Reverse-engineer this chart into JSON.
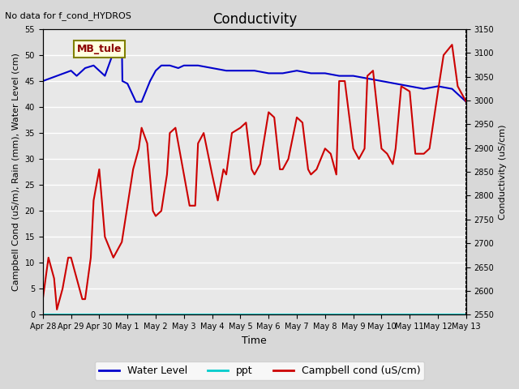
{
  "title": "Conductivity",
  "top_left_text": "No data for f_cond_HYDROS",
  "annotation_box": "MB_tule",
  "xlabel": "Time",
  "ylabel_left": "Campbell Cond (uS/m), Rain (mm), Water Level (cm)",
  "ylabel_right": "Conductivity (uS/cm)",
  "ylim_left": [
    0,
    55
  ],
  "ylim_right": [
    2550,
    3150
  ],
  "yticks_left": [
    0,
    5,
    10,
    15,
    20,
    25,
    30,
    35,
    40,
    45,
    50,
    55
  ],
  "yticks_right": [
    2550,
    2600,
    2650,
    2700,
    2750,
    2800,
    2850,
    2900,
    2950,
    3000,
    3050,
    3100,
    3150
  ],
  "xtick_labels": [
    "Apr 28",
    "Apr 29",
    "Apr 30",
    "May 1",
    "May 2",
    "May 3",
    "May 4",
    "May 5",
    "May 6",
    "May 7",
    "May 8",
    "May 9",
    "May 10",
    "May 11",
    "May 12",
    "May 13"
  ],
  "bg_color": "#e8e8e8",
  "plot_bg_color": "#f0f0f0",
  "water_level_color": "#0000cc",
  "ppt_color": "#00cccc",
  "campbell_color": "#cc0000",
  "legend_entries": [
    "Water Level",
    "ppt",
    "Campbell cond (uS/cm)"
  ],
  "water_level_data_x": [
    0,
    0.5,
    1.0,
    1.2,
    1.5,
    1.8,
    2.0,
    2.2,
    2.5,
    2.7,
    2.8,
    2.82,
    3.0,
    3.3,
    3.5,
    3.8,
    4.0,
    4.2,
    4.5,
    4.8,
    5.0,
    5.5,
    6.0,
    6.5,
    7.0,
    7.5,
    8.0,
    8.5,
    9.0,
    9.5,
    10.0,
    10.5,
    11.0,
    11.5,
    12.0,
    12.5,
    13.0,
    13.5,
    14.0,
    14.5,
    15.0
  ],
  "water_level_data_y": [
    45,
    46,
    47,
    46,
    47.5,
    48,
    47,
    46,
    50.5,
    52,
    52.5,
    45,
    44.5,
    41,
    41,
    45,
    47,
    48,
    48,
    47.5,
    48,
    48,
    47.5,
    47,
    47,
    47,
    46.5,
    46.5,
    47,
    46.5,
    46.5,
    46,
    46,
    45.5,
    45,
    44.5,
    44,
    43.5,
    44,
    43.5,
    41
  ],
  "campbell_data_x": [
    0,
    0.2,
    0.4,
    0.5,
    0.7,
    0.9,
    1.0,
    1.2,
    1.4,
    1.5,
    1.7,
    1.8,
    2.0,
    2.2,
    2.5,
    2.8,
    3.0,
    3.2,
    3.4,
    3.5,
    3.7,
    3.9,
    4.0,
    4.2,
    4.4,
    4.5,
    4.7,
    5.0,
    5.2,
    5.4,
    5.5,
    5.7,
    6.0,
    6.2,
    6.4,
    6.5,
    6.7,
    7.0,
    7.2,
    7.4,
    7.5,
    7.7,
    8.0,
    8.2,
    8.4,
    8.5,
    8.7,
    9.0,
    9.2,
    9.4,
    9.5,
    9.7,
    10.0,
    10.2,
    10.4,
    10.5,
    10.7,
    11.0,
    11.2,
    11.4,
    11.5,
    11.7,
    12.0,
    12.2,
    12.4,
    12.5,
    12.7,
    13.0,
    13.2,
    13.5,
    13.7,
    14.0,
    14.2,
    14.5,
    14.7,
    15.0
  ],
  "campbell_data_y": [
    3,
    11,
    7,
    1,
    5,
    11,
    11,
    7,
    3,
    3,
    11,
    22,
    28,
    15,
    11,
    14,
    21,
    28,
    32,
    36,
    33,
    20,
    19,
    20,
    27,
    35,
    36,
    27,
    21,
    21,
    33,
    35,
    27,
    22,
    28,
    27,
    35,
    36,
    37,
    28,
    27,
    29,
    39,
    38,
    28,
    28,
    30,
    38,
    37,
    28,
    27,
    28,
    32,
    31,
    27,
    45,
    45,
    32,
    30,
    32,
    46,
    47,
    32,
    31,
    29,
    32,
    44,
    43,
    31,
    31,
    32,
    43,
    50,
    52,
    44,
    41
  ]
}
